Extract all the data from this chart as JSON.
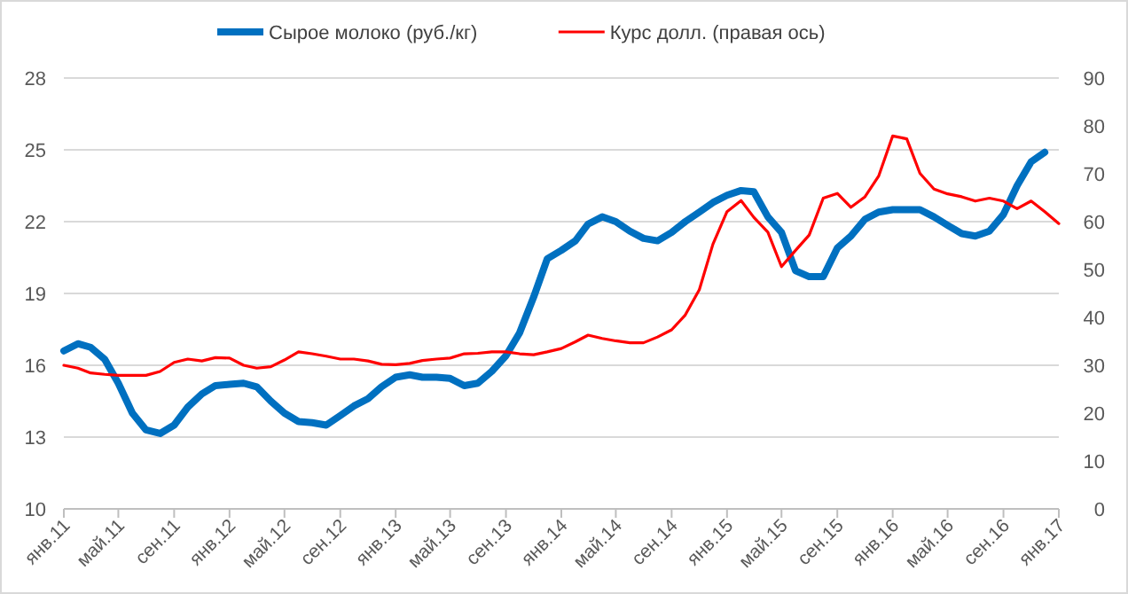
{
  "chart_data": {
    "type": "line",
    "x": [
      "2011-01",
      "2011-02",
      "2011-03",
      "2011-04",
      "2011-05",
      "2011-06",
      "2011-07",
      "2011-08",
      "2011-09",
      "2011-10",
      "2011-11",
      "2011-12",
      "2012-01",
      "2012-02",
      "2012-03",
      "2012-04",
      "2012-05",
      "2012-06",
      "2012-07",
      "2012-08",
      "2012-09",
      "2012-10",
      "2012-11",
      "2012-12",
      "2013-01",
      "2013-02",
      "2013-03",
      "2013-04",
      "2013-05",
      "2013-06",
      "2013-07",
      "2013-08",
      "2013-09",
      "2013-10",
      "2013-11",
      "2013-12",
      "2014-01",
      "2014-02",
      "2014-03",
      "2014-04",
      "2014-05",
      "2014-06",
      "2014-07",
      "2014-08",
      "2014-09",
      "2014-10",
      "2014-11",
      "2014-12",
      "2015-01",
      "2015-02",
      "2015-03",
      "2015-04",
      "2015-05",
      "2015-06",
      "2015-07",
      "2015-08",
      "2015-09",
      "2015-10",
      "2015-11",
      "2015-12",
      "2016-01",
      "2016-02",
      "2016-03",
      "2016-04",
      "2016-05",
      "2016-06",
      "2016-07",
      "2016-08",
      "2016-09",
      "2016-10",
      "2016-11",
      "2016-12",
      "2017-01"
    ],
    "series": [
      {
        "name": "Сырое молоко (руб./кг)",
        "color": "#0070c0",
        "values": [
          16.6,
          16.9,
          16.75,
          16.25,
          15.25,
          14.0,
          13.3,
          13.15,
          13.5,
          14.25,
          14.8,
          15.15,
          15.2,
          15.25,
          15.1,
          14.5,
          14.0,
          13.65,
          13.6,
          13.5,
          13.9,
          14.3,
          14.6,
          15.1,
          15.5,
          15.6,
          15.5,
          15.5,
          15.45,
          15.15,
          15.25,
          15.75,
          16.4,
          17.35,
          18.85,
          20.45,
          20.8,
          21.2,
          21.9,
          22.2,
          22.0,
          21.6,
          21.3,
          21.2,
          21.55,
          22.0,
          22.4,
          22.8,
          23.1,
          23.3,
          23.25,
          22.2,
          21.55,
          19.95,
          19.7,
          19.7,
          20.9,
          21.4,
          22.1,
          22.4,
          22.5,
          22.5,
          22.5,
          22.2,
          21.85,
          21.5,
          21.4,
          21.6,
          22.3,
          23.5,
          24.5,
          24.9,
          null
        ]
      },
      {
        "name": "Курс долл. (правая ось)",
        "color": "#ff0000",
        "axis": "y2",
        "values": [
          30,
          29.4,
          28.4,
          28.1,
          27.9,
          27.9,
          27.9,
          28.7,
          30.6,
          31.3,
          30.9,
          31.6,
          31.5,
          30,
          29.4,
          29.7,
          31.1,
          32.8,
          32.4,
          31.9,
          31.3,
          31.3,
          30.9,
          30.2,
          30.1,
          30.4,
          31,
          31.3,
          31.5,
          32.4,
          32.5,
          32.8,
          32.8,
          32.4,
          32.2,
          32.8,
          33.5,
          34.9,
          36.3,
          35.6,
          35.1,
          34.7,
          34.7,
          35.9,
          37.4,
          40.5,
          45.8,
          55.3,
          62.1,
          64.4,
          60.9,
          57.8,
          50.6,
          54,
          57.2,
          64.9,
          65.9,
          63,
          65.2,
          69.5,
          77.9,
          77.3,
          70.1,
          66.8,
          65.8,
          65.2,
          64.3,
          64.9,
          64.3,
          62.7,
          64.3,
          62.1,
          59.6
        ]
      }
    ],
    "xlim": [
      "2011-01",
      "2017-01"
    ],
    "xticks": [
      {
        "value": "2011-01",
        "label": "янв.11"
      },
      {
        "value": "2011-05",
        "label": "май.11"
      },
      {
        "value": "2011-09",
        "label": "сен.11"
      },
      {
        "value": "2012-01",
        "label": "янв.12"
      },
      {
        "value": "2012-05",
        "label": "май.12"
      },
      {
        "value": "2012-09",
        "label": "сен.12"
      },
      {
        "value": "2013-01",
        "label": "янв.13"
      },
      {
        "value": "2013-05",
        "label": "май.13"
      },
      {
        "value": "2013-09",
        "label": "сен.13"
      },
      {
        "value": "2014-01",
        "label": "янв.14"
      },
      {
        "value": "2014-05",
        "label": "май.14"
      },
      {
        "value": "2014-09",
        "label": "сен.14"
      },
      {
        "value": "2015-01",
        "label": "янв.15"
      },
      {
        "value": "2015-05",
        "label": "май.15"
      },
      {
        "value": "2015-09",
        "label": "сен.15"
      },
      {
        "value": "2016-01",
        "label": "янв.16"
      },
      {
        "value": "2016-05",
        "label": "май.16"
      },
      {
        "value": "2016-09",
        "label": "сен.16"
      },
      {
        "value": "2017-01",
        "label": "янв.17"
      }
    ],
    "ylim": [
      10,
      28
    ],
    "yticks": [
      10,
      13,
      16,
      19,
      22,
      25,
      28
    ],
    "y2lim": [
      0,
      90
    ],
    "y2ticks": [
      0,
      10,
      20,
      30,
      40,
      50,
      60,
      70,
      80,
      90
    ],
    "grid": "y",
    "legend": "top",
    "marker": "none",
    "line_style": "solid"
  }
}
